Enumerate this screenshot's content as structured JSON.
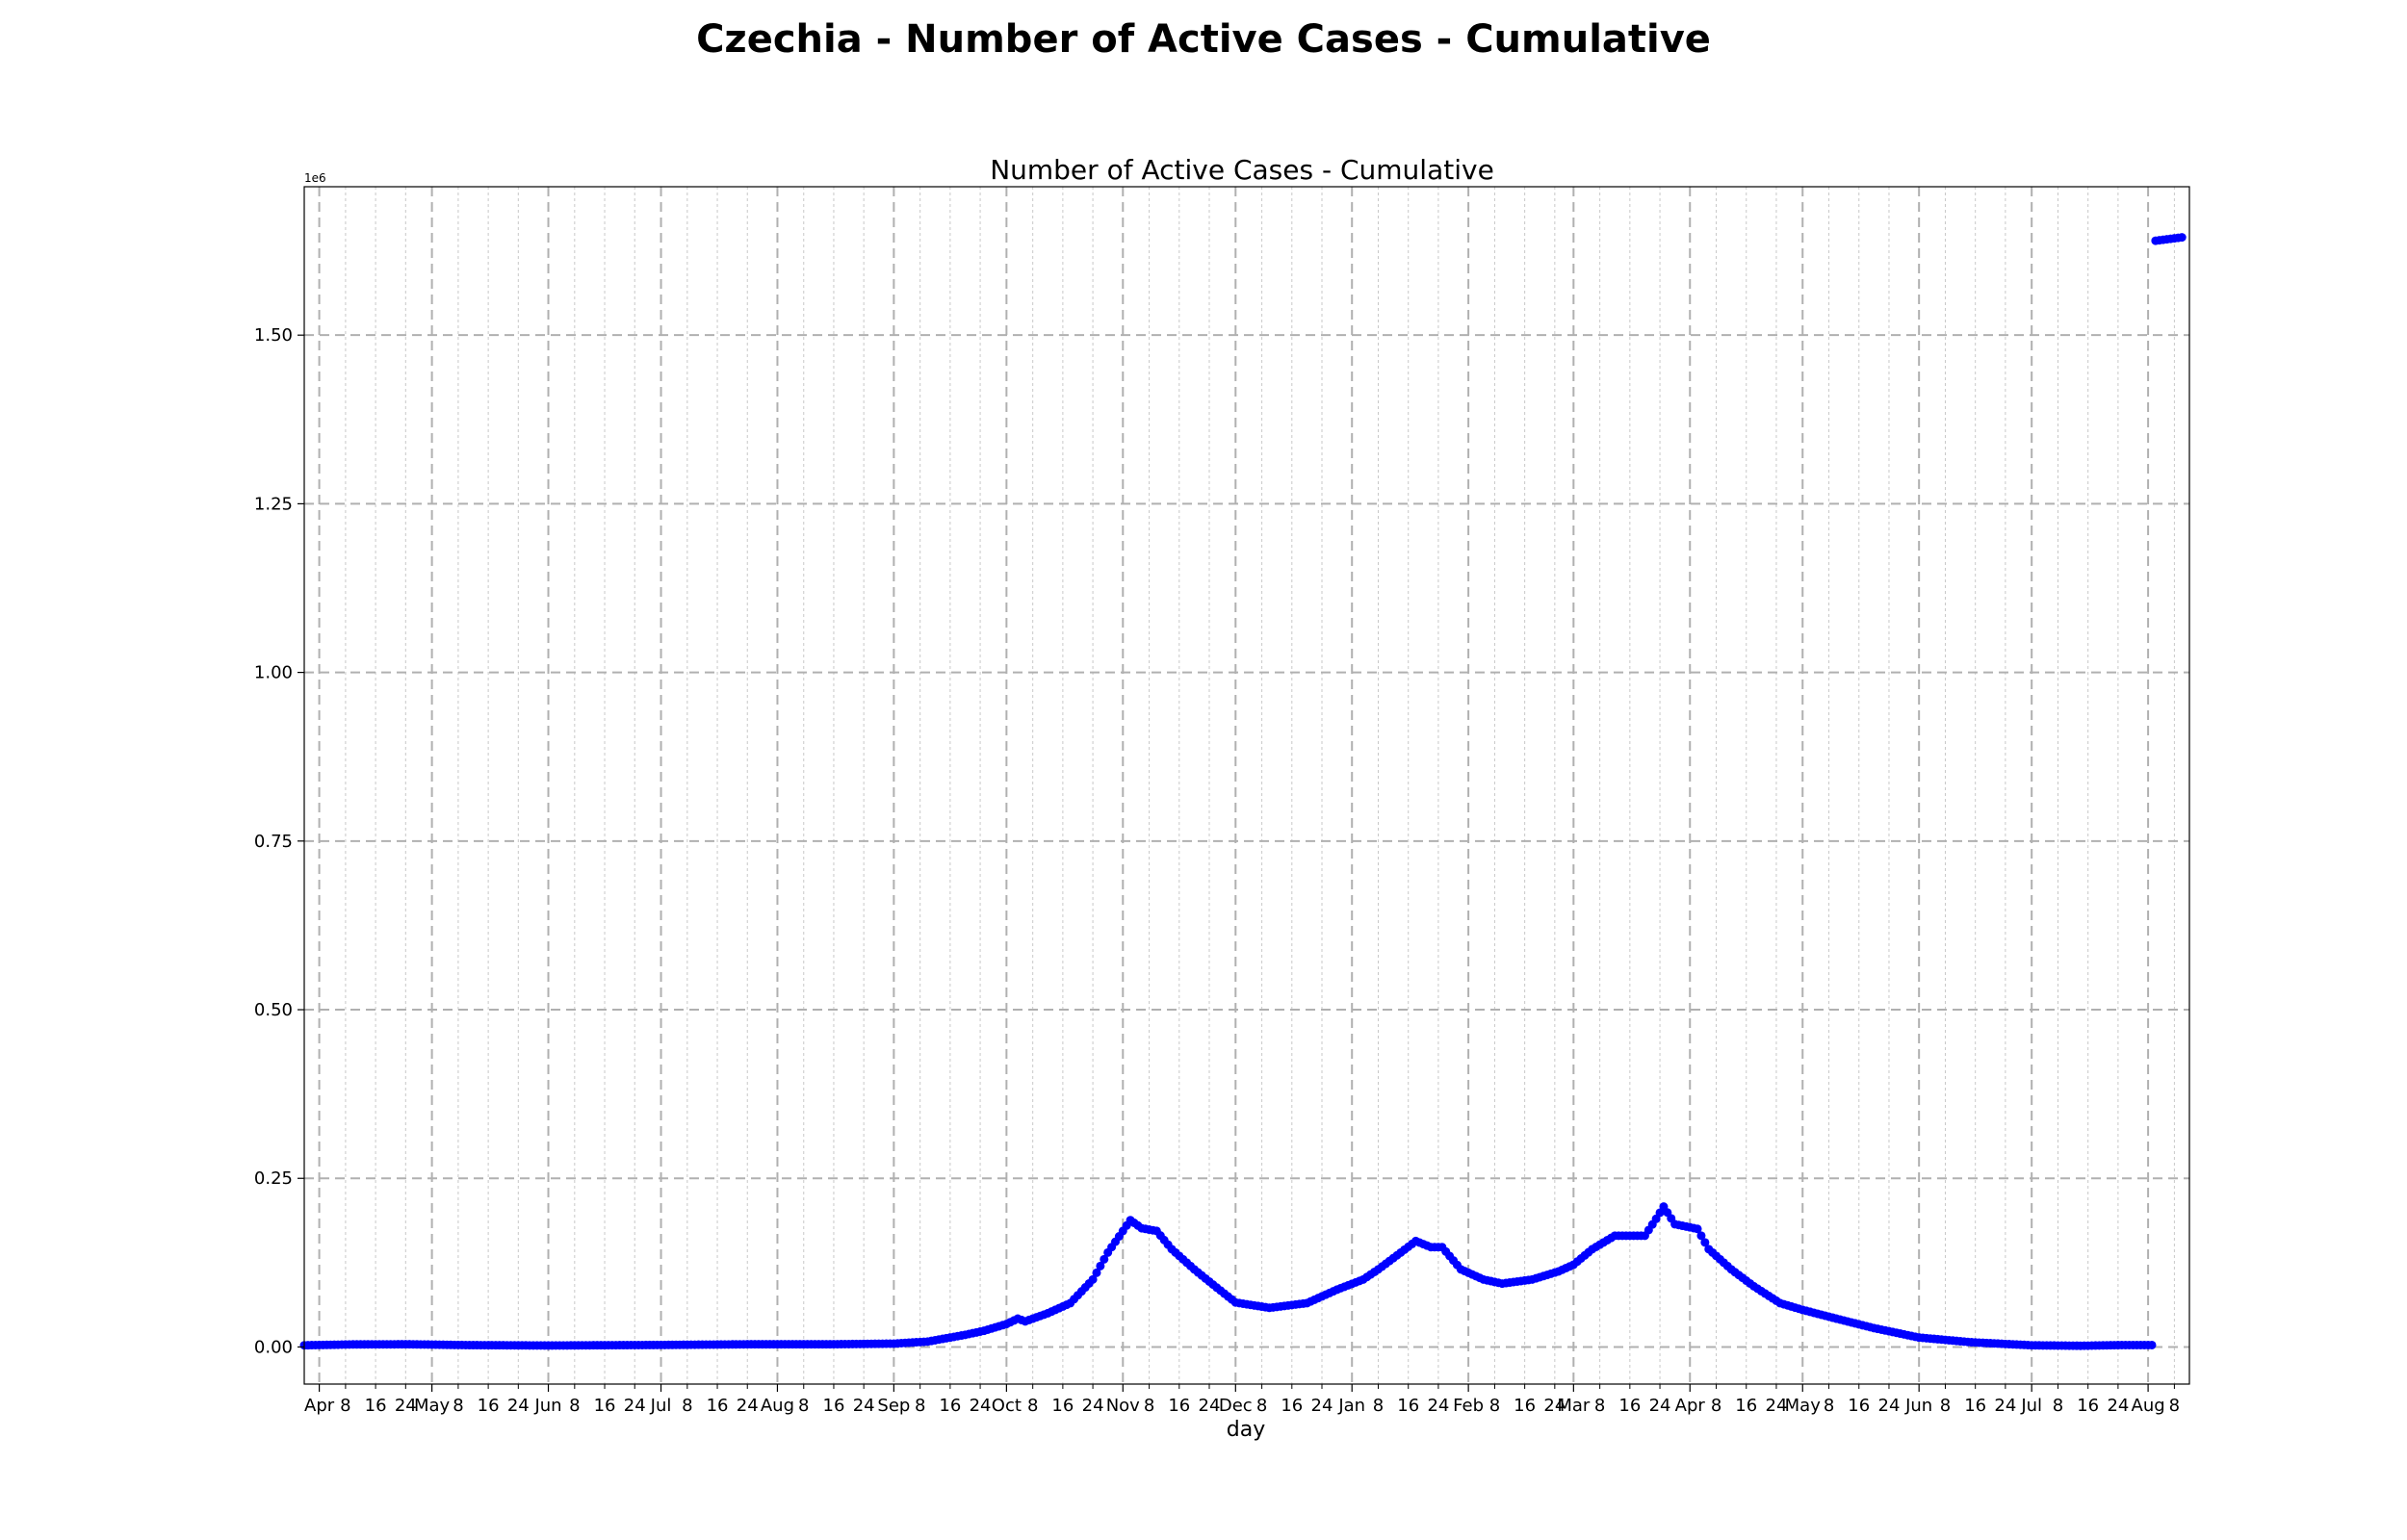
{
  "figure": {
    "suptitle": "Czechia - Number of Active Cases - Cumulative"
  },
  "chart_data": {
    "type": "scatter",
    "title": "Number of Active Cases - Cumulative",
    "xlabel": "day",
    "ylabel": "",
    "y_offset_label": "1e6",
    "ylim": [
      -55000,
      1720000
    ],
    "xlim": [
      "2020-03-28",
      "2021-08-12"
    ],
    "grid": true,
    "marker_color": "#0000ff",
    "y_ticks": [
      {
        "value": 0,
        "label": "0.00"
      },
      {
        "value": 250000,
        "label": "0.25"
      },
      {
        "value": 500000,
        "label": "0.50"
      },
      {
        "value": 750000,
        "label": "0.75"
      },
      {
        "value": 1000000,
        "label": "1.00"
      },
      {
        "value": 1250000,
        "label": "1.25"
      },
      {
        "value": 1500000,
        "label": "1.50"
      }
    ],
    "x_major_ticks": [
      {
        "date": "2020-04-01",
        "label": "Apr"
      },
      {
        "date": "2020-05-01",
        "label": "May"
      },
      {
        "date": "2020-06-01",
        "label": "Jun"
      },
      {
        "date": "2020-07-01",
        "label": "Jul"
      },
      {
        "date": "2020-08-01",
        "label": "Aug"
      },
      {
        "date": "2020-09-01",
        "label": "Sep"
      },
      {
        "date": "2020-10-01",
        "label": "Oct"
      },
      {
        "date": "2020-11-01",
        "label": "Nov"
      },
      {
        "date": "2020-12-01",
        "label": "Dec"
      },
      {
        "date": "2021-01-01",
        "label": "Jan"
      },
      {
        "date": "2021-02-01",
        "label": "Feb"
      },
      {
        "date": "2021-03-01",
        "label": "Mar"
      },
      {
        "date": "2021-04-01",
        "label": "Apr"
      },
      {
        "date": "2021-05-01",
        "label": "May"
      },
      {
        "date": "2021-06-01",
        "label": "Jun"
      },
      {
        "date": "2021-07-01",
        "label": "Jul"
      },
      {
        "date": "2021-08-01",
        "label": "Aug"
      }
    ],
    "x_minor_tick_days": [
      8,
      16,
      24
    ],
    "series": [
      {
        "points": [
          [
            "2020-03-28",
            2500
          ],
          [
            "2020-04-10",
            3800
          ],
          [
            "2020-04-25",
            4000
          ],
          [
            "2020-05-10",
            2800
          ],
          [
            "2020-06-01",
            2200
          ],
          [
            "2020-07-01",
            3000
          ],
          [
            "2020-07-25",
            4000
          ],
          [
            "2020-08-15",
            4000
          ],
          [
            "2020-09-01",
            5000
          ],
          [
            "2020-09-10",
            8000
          ],
          [
            "2020-09-20",
            18000
          ],
          [
            "2020-09-25",
            24000
          ],
          [
            "2020-10-01",
            34000
          ],
          [
            "2020-10-04",
            42000
          ],
          [
            "2020-10-06",
            38000
          ],
          [
            "2020-10-12",
            50000
          ],
          [
            "2020-10-18",
            65000
          ],
          [
            "2020-10-24",
            100000
          ],
          [
            "2020-10-28",
            140000
          ],
          [
            "2020-11-01",
            172000
          ],
          [
            "2020-11-03",
            188000
          ],
          [
            "2020-11-06",
            176000
          ],
          [
            "2020-11-10",
            172000
          ],
          [
            "2020-11-14",
            145000
          ],
          [
            "2020-11-20",
            115000
          ],
          [
            "2020-11-26",
            88000
          ],
          [
            "2020-12-01",
            66000
          ],
          [
            "2020-12-10",
            58000
          ],
          [
            "2020-12-20",
            65000
          ],
          [
            "2020-12-28",
            85000
          ],
          [
            "2021-01-04",
            100000
          ],
          [
            "2021-01-08",
            115000
          ],
          [
            "2021-01-14",
            140000
          ],
          [
            "2021-01-18",
            157000
          ],
          [
            "2021-01-22",
            148000
          ],
          [
            "2021-01-25",
            148000
          ],
          [
            "2021-01-30",
            115000
          ],
          [
            "2021-02-05",
            100000
          ],
          [
            "2021-02-10",
            94000
          ],
          [
            "2021-02-18",
            100000
          ],
          [
            "2021-02-25",
            112000
          ],
          [
            "2021-03-01",
            122000
          ],
          [
            "2021-03-06",
            145000
          ],
          [
            "2021-03-12",
            165000
          ],
          [
            "2021-03-20",
            165000
          ],
          [
            "2021-03-23",
            190000
          ],
          [
            "2021-03-25",
            208000
          ],
          [
            "2021-03-28",
            182000
          ],
          [
            "2021-04-03",
            175000
          ],
          [
            "2021-04-06",
            145000
          ],
          [
            "2021-04-12",
            115000
          ],
          [
            "2021-04-18",
            90000
          ],
          [
            "2021-04-25",
            65000
          ],
          [
            "2021-05-01",
            55000
          ],
          [
            "2021-05-10",
            42000
          ],
          [
            "2021-05-20",
            28000
          ],
          [
            "2021-06-01",
            14000
          ],
          [
            "2021-06-15",
            7000
          ],
          [
            "2021-07-01",
            2500
          ],
          [
            "2021-07-14",
            1800
          ],
          [
            "2021-07-25",
            2800
          ],
          [
            "2021-08-02",
            2800
          ],
          [
            "2021-08-03",
            1640000
          ],
          [
            "2021-08-10",
            1645000
          ]
        ]
      }
    ]
  }
}
